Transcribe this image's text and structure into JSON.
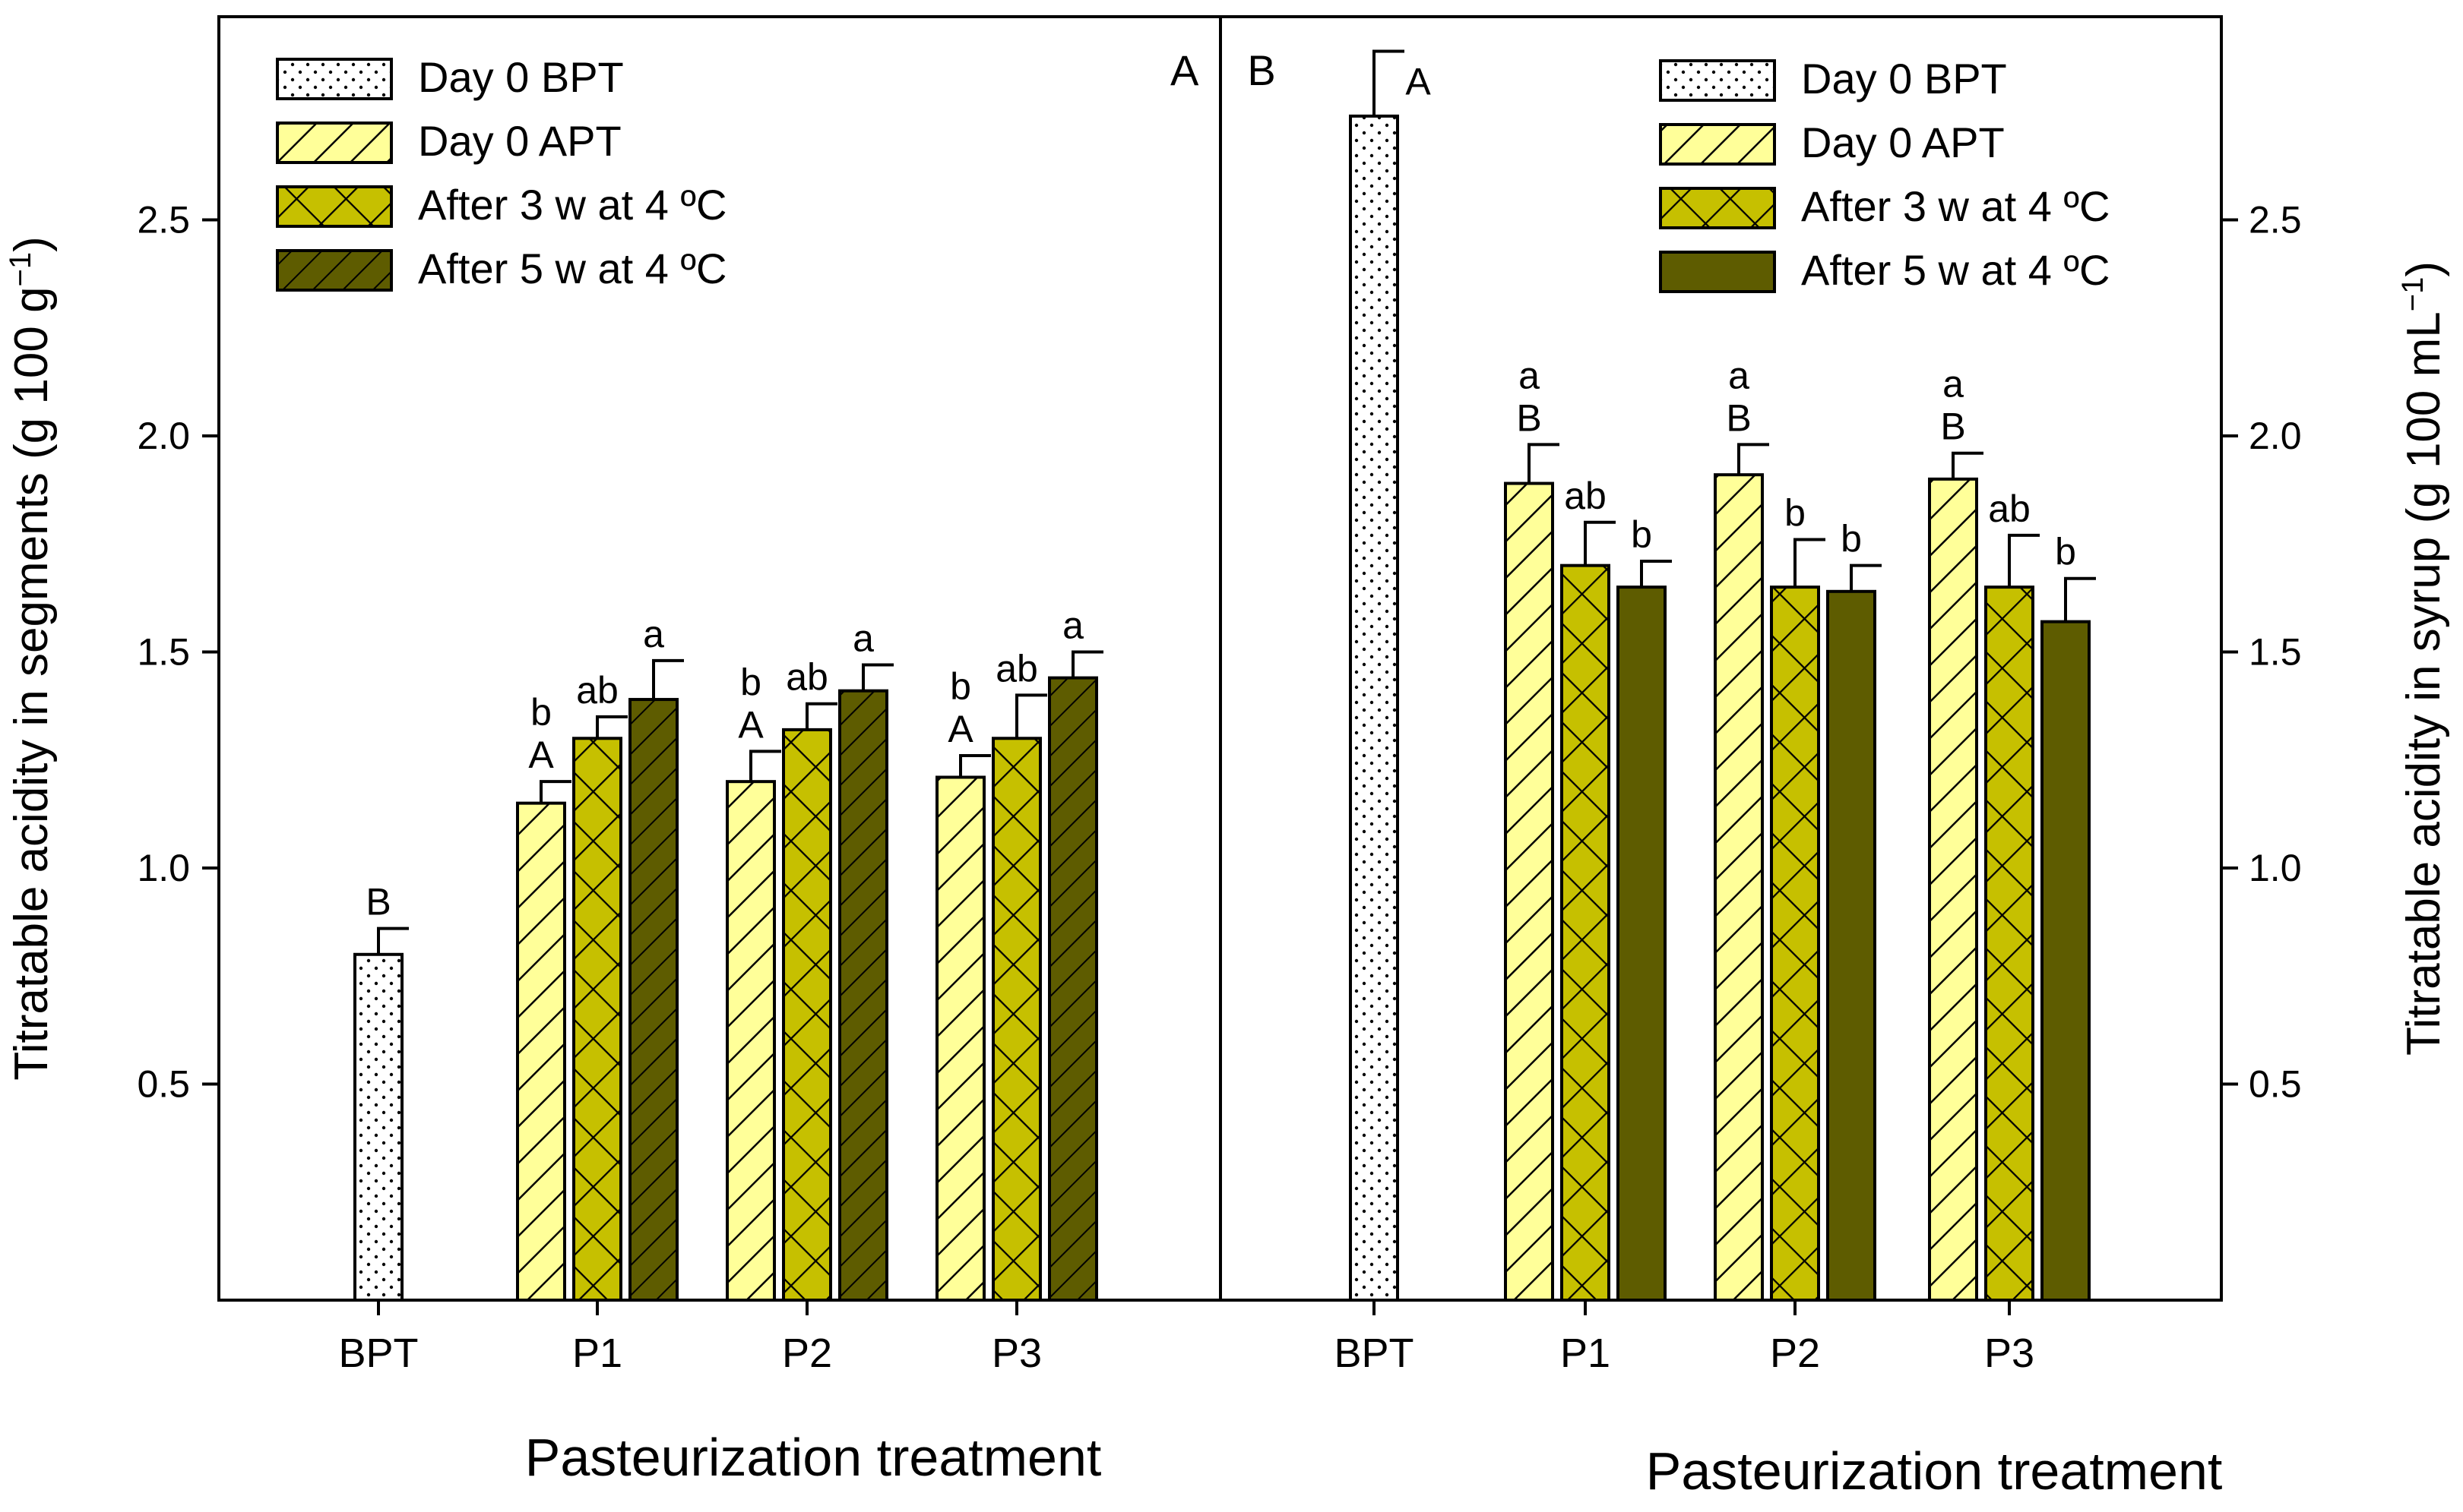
{
  "colors": {
    "bpt": "#ffffff",
    "day0_apt": "#ffff99",
    "after_3w": "#c6c000",
    "after_5w": "#5e5c00",
    "axes": "#000000"
  },
  "chart_data": [
    {
      "type": "bar",
      "panel_label": "A",
      "xlabel": "Pasteurization treatment",
      "ylabel": "Titratable acidity in segments (g 100 g",
      "ylabel_superscript": "−1",
      "ylabel_close": ")",
      "ylim": [
        0,
        2.97
      ],
      "yticks": [
        0.5,
        1.0,
        1.5,
        2.0,
        2.5
      ],
      "ytick_labels": [
        "0.5",
        "1.0",
        "1.5",
        "2.0",
        "2.5"
      ],
      "yaxis_side": "left",
      "categories": [
        "BPT",
        "P1",
        "P2",
        "P3"
      ],
      "legend_position": "top-left",
      "series": [
        {
          "name": "Day 0 BPT",
          "pattern": "dots",
          "values": [
            0.8,
            null,
            null,
            null
          ],
          "errors": [
            0.06,
            null,
            null,
            null
          ],
          "labels": [
            [
              "B"
            ],
            null,
            null,
            null
          ]
        },
        {
          "name": "Day 0 APT",
          "pattern": "diag",
          "values": [
            null,
            1.15,
            1.2,
            1.21
          ],
          "errors": [
            null,
            0.05,
            0.07,
            0.05
          ],
          "labels": [
            null,
            [
              "b",
              "A"
            ],
            [
              "b",
              "A"
            ],
            [
              "b",
              "A"
            ]
          ]
        },
        {
          "name": "After 3 w at 4 ºC",
          "pattern": "cross",
          "values": [
            null,
            1.3,
            1.32,
            1.3
          ],
          "errors": [
            null,
            0.05,
            0.06,
            0.1
          ],
          "labels": [
            null,
            [
              "ab"
            ],
            [
              "ab"
            ],
            [
              "ab"
            ]
          ]
        },
        {
          "name": "After 5 w at 4 ºC",
          "pattern": "diag",
          "values": [
            null,
            1.39,
            1.41,
            1.44
          ],
          "errors": [
            null,
            0.09,
            0.06,
            0.06
          ],
          "labels": [
            null,
            [
              "a"
            ],
            [
              "a"
            ],
            [
              "a"
            ]
          ]
        }
      ]
    },
    {
      "type": "bar",
      "panel_label": "B",
      "xlabel": "Pasteurization treatment",
      "ylabel": "Titratable acidity in syrup (g 100 mL",
      "ylabel_superscript": "−1",
      "ylabel_close": ")",
      "ylim": [
        0,
        2.97
      ],
      "yticks": [
        0.5,
        1.0,
        1.5,
        2.0,
        2.5
      ],
      "ytick_labels": [
        "0.5",
        "1.0",
        "1.5",
        "2.0",
        "2.5"
      ],
      "yaxis_side": "right",
      "categories": [
        "BPT",
        "P1",
        "P2",
        "P3"
      ],
      "legend_position": "top-right",
      "series": [
        {
          "name": "Day 0 BPT",
          "pattern": "dots",
          "values": [
            2.74,
            null,
            null,
            null
          ],
          "errors": [
            0.15,
            null,
            null,
            null
          ],
          "labels": [
            [
              "A"
            ],
            null,
            null,
            null
          ]
        },
        {
          "name": "Day 0 APT",
          "pattern": "diag",
          "values": [
            null,
            1.89,
            1.91,
            1.9
          ],
          "errors": [
            null,
            0.09,
            0.07,
            0.06
          ],
          "labels": [
            null,
            [
              "a",
              "B"
            ],
            [
              "a",
              "B"
            ],
            [
              "a",
              "B"
            ]
          ]
        },
        {
          "name": "After 3 w at 4 ºC",
          "pattern": "cross",
          "values": [
            null,
            1.7,
            1.65,
            1.65
          ],
          "errors": [
            null,
            0.1,
            0.11,
            0.12
          ],
          "labels": [
            null,
            [
              "ab"
            ],
            [
              "b"
            ],
            [
              "ab"
            ]
          ]
        },
        {
          "name": "After 5 w at 4 ºC",
          "pattern": "solid",
          "values": [
            null,
            1.65,
            1.64,
            1.57
          ],
          "errors": [
            null,
            0.06,
            0.06,
            0.1
          ],
          "labels": [
            null,
            [
              "b"
            ],
            [
              "b"
            ],
            [
              "b"
            ]
          ]
        }
      ]
    }
  ]
}
